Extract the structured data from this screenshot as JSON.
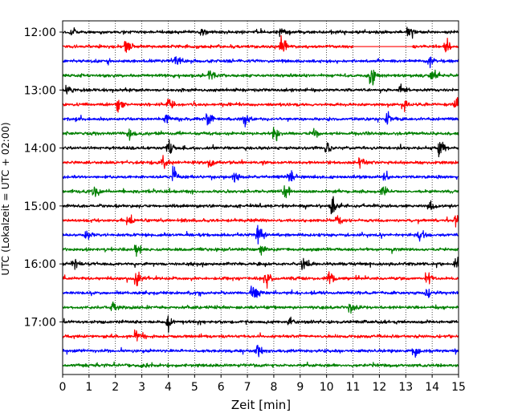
{
  "chart_data": {
    "type": "line",
    "xlabel": "Zeit  [min]",
    "ylabel": "UTC (Lokalzeit = UTC + 02:00)",
    "xlim": [
      0,
      15
    ],
    "x_ticks": [
      "0",
      "1",
      "2",
      "3",
      "4",
      "5",
      "6",
      "7",
      "8",
      "9",
      "10",
      "11",
      "12",
      "13",
      "14",
      "15"
    ],
    "y_ticks": [
      {
        "label": "12:00",
        "row": 0
      },
      {
        "label": "13:00",
        "row": 4
      },
      {
        "label": "14:00",
        "row": 8
      },
      {
        "label": "15:00",
        "row": 12
      },
      {
        "label": "16:00",
        "row": 16
      },
      {
        "label": "17:00",
        "row": 20
      }
    ],
    "row_interval_min": 15,
    "row_count": 24,
    "grid": "vertical-dotted",
    "trace_colors": [
      "#000000",
      "#ff0000",
      "#0000ff",
      "#008000"
    ],
    "gap": {
      "row": 1,
      "start_min": 11.0,
      "end_min": 13.3
    },
    "events": [
      {
        "row": 0,
        "t": 0.3,
        "a": 1.0
      },
      {
        "row": 0,
        "t": 5.3,
        "a": 0.8
      },
      {
        "row": 0,
        "t": 8.3,
        "a": 0.9
      },
      {
        "row": 0,
        "t": 13.1,
        "a": 1.2
      },
      {
        "row": 1,
        "t": 2.4,
        "a": 1.2
      },
      {
        "row": 1,
        "t": 8.3,
        "a": 1.6
      },
      {
        "row": 1,
        "t": 14.5,
        "a": 1.0
      },
      {
        "row": 2,
        "t": 4.3,
        "a": 0.8
      },
      {
        "row": 2,
        "t": 13.9,
        "a": 0.9
      },
      {
        "row": 3,
        "t": 5.6,
        "a": 0.8
      },
      {
        "row": 3,
        "t": 11.7,
        "a": 1.5
      },
      {
        "row": 3,
        "t": 14.0,
        "a": 1.1
      },
      {
        "row": 4,
        "t": 0.2,
        "a": 0.8
      },
      {
        "row": 4,
        "t": 12.8,
        "a": 0.8
      },
      {
        "row": 5,
        "t": 2.1,
        "a": 1.1
      },
      {
        "row": 5,
        "t": 4.0,
        "a": 0.7
      },
      {
        "row": 5,
        "t": 12.9,
        "a": 1.0
      },
      {
        "row": 5,
        "t": 14.9,
        "a": 0.8
      },
      {
        "row": 6,
        "t": 3.9,
        "a": 0.9
      },
      {
        "row": 6,
        "t": 5.5,
        "a": 1.1
      },
      {
        "row": 6,
        "t": 6.9,
        "a": 1.0
      },
      {
        "row": 6,
        "t": 12.3,
        "a": 1.0
      },
      {
        "row": 7,
        "t": 2.5,
        "a": 0.9
      },
      {
        "row": 7,
        "t": 8.0,
        "a": 1.2
      },
      {
        "row": 7,
        "t": 9.5,
        "a": 0.7
      },
      {
        "row": 8,
        "t": 4.0,
        "a": 1.2
      },
      {
        "row": 8,
        "t": 10.0,
        "a": 0.8
      },
      {
        "row": 8,
        "t": 14.3,
        "a": 1.2
      },
      {
        "row": 9,
        "t": 3.8,
        "a": 1.1
      },
      {
        "row": 9,
        "t": 5.6,
        "a": 0.8
      },
      {
        "row": 9,
        "t": 11.3,
        "a": 1.0
      },
      {
        "row": 10,
        "t": 4.2,
        "a": 1.3
      },
      {
        "row": 10,
        "t": 6.5,
        "a": 1.0
      },
      {
        "row": 10,
        "t": 8.6,
        "a": 0.8
      },
      {
        "row": 10,
        "t": 12.2,
        "a": 0.8
      },
      {
        "row": 11,
        "t": 1.2,
        "a": 1.0
      },
      {
        "row": 11,
        "t": 8.4,
        "a": 1.1
      },
      {
        "row": 11,
        "t": 12.1,
        "a": 1.0
      },
      {
        "row": 12,
        "t": 10.2,
        "a": 1.4
      },
      {
        "row": 12,
        "t": 13.9,
        "a": 0.7
      },
      {
        "row": 13,
        "t": 2.5,
        "a": 0.8
      },
      {
        "row": 13,
        "t": 10.4,
        "a": 0.8
      },
      {
        "row": 13,
        "t": 14.9,
        "a": 1.0
      },
      {
        "row": 14,
        "t": 0.9,
        "a": 1.0
      },
      {
        "row": 14,
        "t": 7.4,
        "a": 1.3
      },
      {
        "row": 14,
        "t": 13.5,
        "a": 0.9
      },
      {
        "row": 15,
        "t": 2.8,
        "a": 0.8
      },
      {
        "row": 15,
        "t": 7.5,
        "a": 0.7
      },
      {
        "row": 16,
        "t": 0.4,
        "a": 0.7
      },
      {
        "row": 16,
        "t": 9.1,
        "a": 0.8
      },
      {
        "row": 16,
        "t": 14.9,
        "a": 0.8
      },
      {
        "row": 17,
        "t": 2.8,
        "a": 1.3
      },
      {
        "row": 17,
        "t": 7.7,
        "a": 1.0
      },
      {
        "row": 17,
        "t": 10.1,
        "a": 0.9
      },
      {
        "row": 17,
        "t": 13.8,
        "a": 1.0
      },
      {
        "row": 18,
        "t": 7.2,
        "a": 1.2
      },
      {
        "row": 18,
        "t": 13.8,
        "a": 0.8
      },
      {
        "row": 19,
        "t": 1.9,
        "a": 0.7
      },
      {
        "row": 19,
        "t": 10.9,
        "a": 0.8
      },
      {
        "row": 20,
        "t": 4.0,
        "a": 1.0
      },
      {
        "row": 20,
        "t": 8.6,
        "a": 0.8
      },
      {
        "row": 21,
        "t": 2.8,
        "a": 1.0
      },
      {
        "row": 22,
        "t": 7.4,
        "a": 1.1
      },
      {
        "row": 22,
        "t": 13.3,
        "a": 0.9
      },
      {
        "row": 23,
        "t": 3.0,
        "a": 0.5
      }
    ]
  }
}
